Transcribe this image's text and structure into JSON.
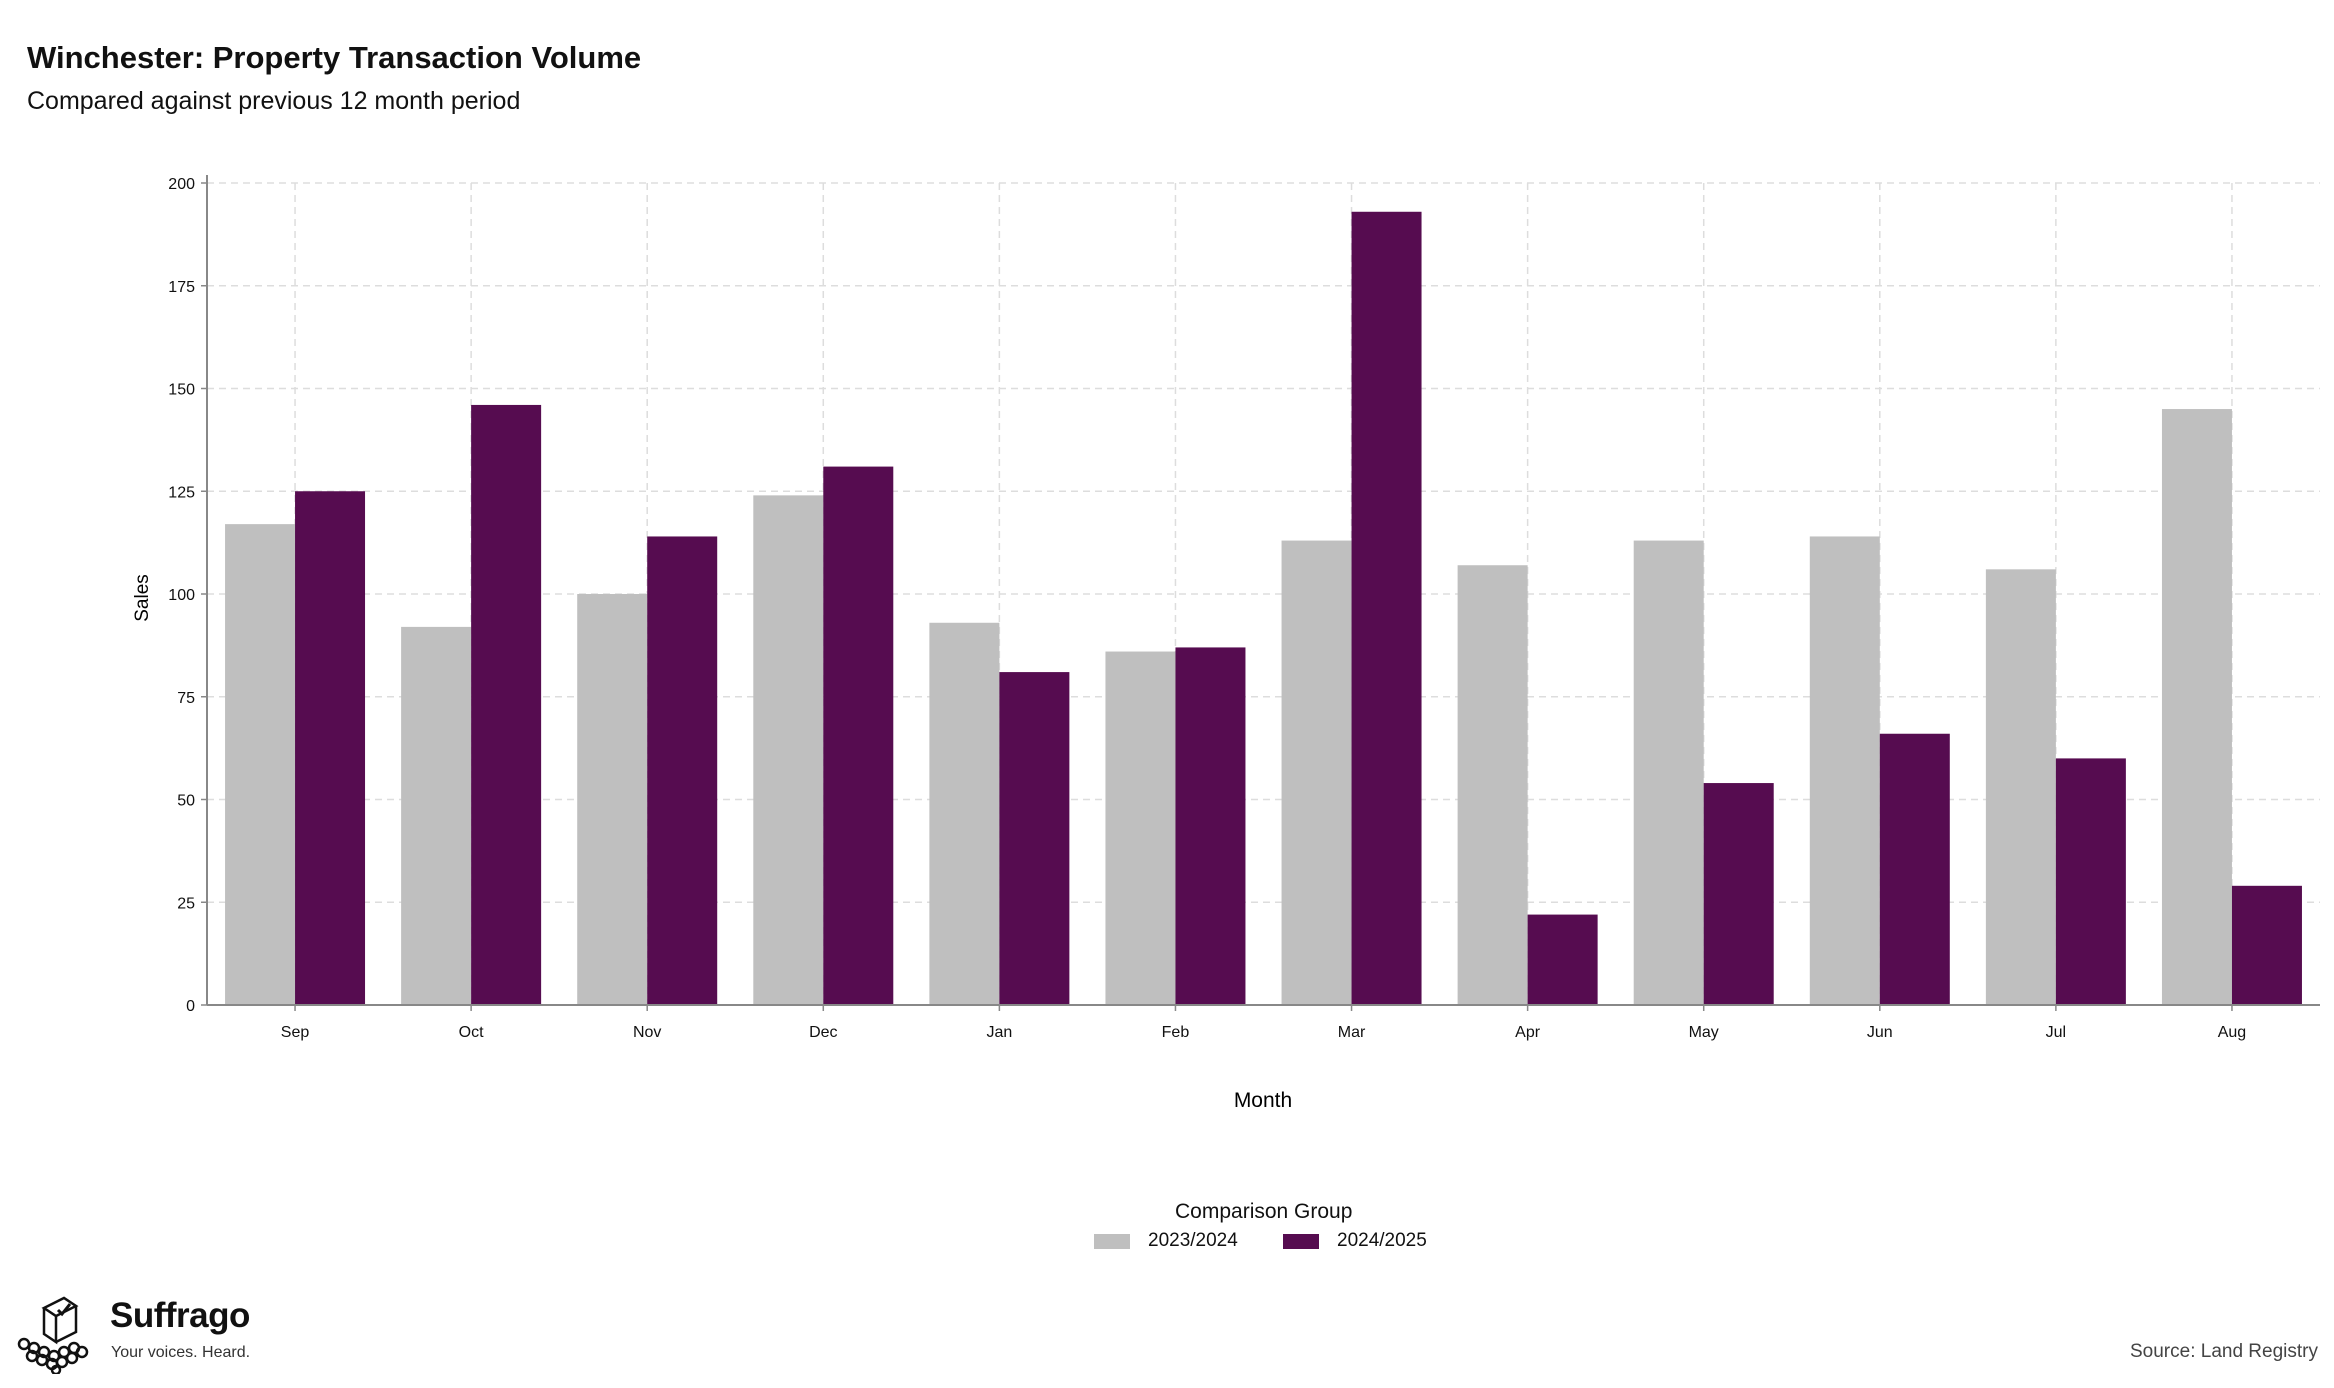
{
  "header": {
    "title": "Winchester: Property Transaction Volume",
    "subtitle": "Compared against previous 12 month period"
  },
  "legend": {
    "title": "Comparison Group"
  },
  "brand": {
    "name": "Suffrago",
    "tagline": "Your voices. Heard.",
    "icon": "ballot-box-icon"
  },
  "source": "Source: Land Registry",
  "colors": {
    "series_2023": "#bfbfbf",
    "series_2024": "#560c50",
    "grid": "#dddddd",
    "axis": "#888888"
  },
  "chart_data": {
    "type": "bar",
    "categories": [
      "Sep",
      "Oct",
      "Nov",
      "Dec",
      "Jan",
      "Feb",
      "Mar",
      "Apr",
      "May",
      "Jun",
      "Jul",
      "Aug"
    ],
    "series": [
      {
        "name": "2023/2024",
        "color": "#bfbfbf",
        "values": [
          117,
          92,
          100,
          124,
          93,
          86,
          113,
          107,
          113,
          114,
          106,
          145
        ]
      },
      {
        "name": "2024/2025",
        "color": "#560c50",
        "values": [
          125,
          146,
          114,
          131,
          81,
          87,
          193,
          22,
          54,
          66,
          60,
          29
        ]
      }
    ],
    "xlabel": "Month",
    "ylabel": "Sales",
    "ylim": [
      0,
      200
    ],
    "yticks": [
      0,
      25,
      50,
      75,
      100,
      125,
      150,
      175,
      200
    ],
    "grid": true,
    "legend_position": "bottom"
  }
}
